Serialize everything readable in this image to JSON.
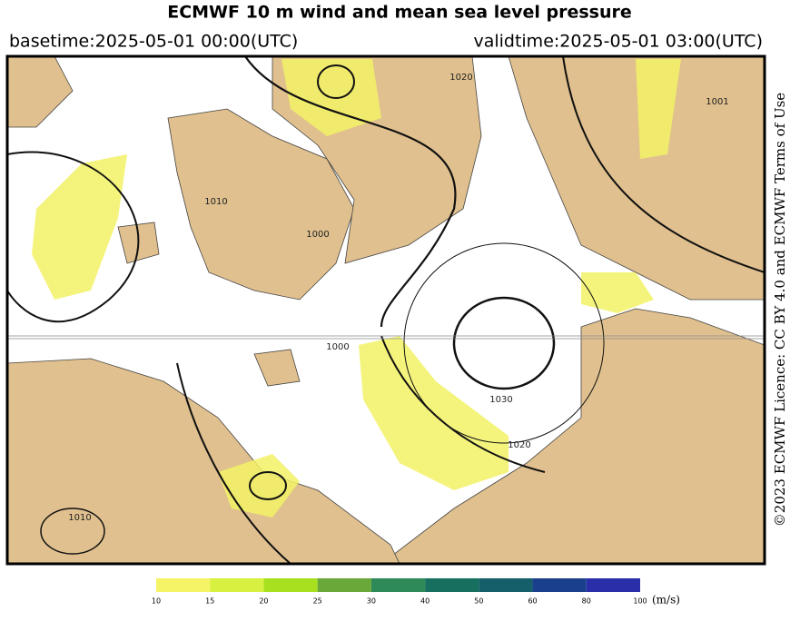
{
  "header": {
    "title": "ECMWF 10 m wind and mean sea level pressure",
    "basetime": "basetime:2025-05-01 00:00(UTC)",
    "validtime": "validtime:2025-05-01 03:00(UTC)"
  },
  "licence": "©2023 ECMWF Licence: CC BY 4.0 and ECMWF Terms of Use",
  "map": {
    "isobar_labels": [
      "1001",
      "1010",
      "1000",
      "1020",
      "1000",
      "1030",
      "1020",
      "1010"
    ]
  },
  "colorbar": {
    "ticks": [
      10,
      15,
      20,
      25,
      30,
      40,
      50,
      60,
      80,
      100
    ],
    "colors": [
      "#f4f466",
      "#d8f040",
      "#a8e020",
      "#6aa83a",
      "#2f8a5a",
      "#17705f",
      "#145f6a",
      "#1a3f8c",
      "#2a2ea8"
    ],
    "unit": "(m/s)"
  }
}
